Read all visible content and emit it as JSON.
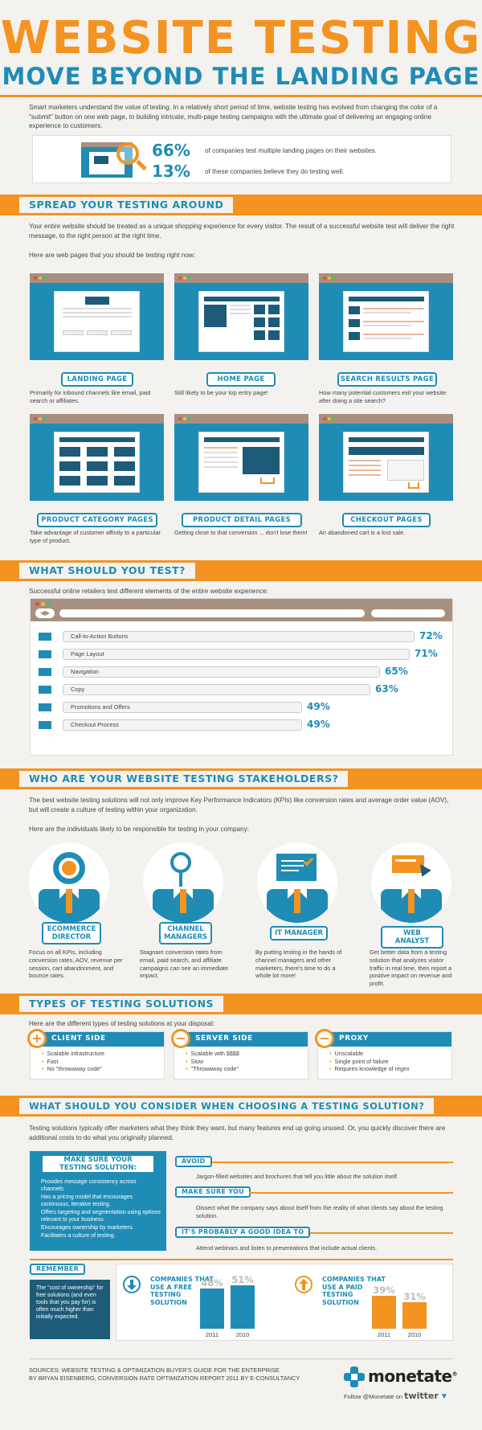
{
  "header": {
    "title": "WEBSITE TESTING",
    "subtitle": "MOVE BEYOND THE LANDING PAGE"
  },
  "intro": {
    "text": "Smart marketers understand the value of testing. In a relatively short period of time, website testing has evolved from changing the color of a \"submit\" button on one web page, to building intricate, multi-page testing campaigns with the ultimate goal of delivering an engaging online experience to customers.",
    "stats": [
      {
        "value": "66%",
        "label": "of companies test multiple landing pages on their websites."
      },
      {
        "value": "13%",
        "label": "of these companies believe they do testing well."
      }
    ]
  },
  "spread": {
    "heading": "SPREAD YOUR TESTING AROUND",
    "text1": "Your entire website should be treated as a unique shopping experience for every visitor. The result of a successful website test will deliver the right message, to the right person at the right time.",
    "text2": "Here are web pages that you should be testing right now:",
    "pages": [
      {
        "label": "LANDING PAGE",
        "caption": "Primarily for inbound channels like email, paid search or affiliates."
      },
      {
        "label": "HOME PAGE",
        "caption": "Still likely to be your top entry page!"
      },
      {
        "label": "SEARCH RESULTS PAGE",
        "caption": "How many potential customers exit your website after doing a site search?"
      },
      {
        "label": "PRODUCT CATEGORY PAGES",
        "caption": "Take advantage of customer affinity to a particular type of product."
      },
      {
        "label": "PRODUCT DETAIL PAGES",
        "caption": "Getting close to that conversion ... don't lose them!"
      },
      {
        "label": "CHECKOUT PAGES",
        "caption": "An abandoned cart is a lost sale."
      }
    ]
  },
  "whattest": {
    "heading": "WHAT SHOULD YOU TEST?",
    "text": "Successful online retailers test different elements of the entire website experience:",
    "items": [
      {
        "label": "Call-to-Action Buttons",
        "value": 72,
        "display": "72%"
      },
      {
        "label": "Page Layout",
        "value": 71,
        "display": "71%"
      },
      {
        "label": "Navigation",
        "value": 65,
        "display": "65%"
      },
      {
        "label": "Copy",
        "value": 63,
        "display": "63%"
      },
      {
        "label": "Promotions and Offers",
        "value": 49,
        "display": "49%"
      },
      {
        "label": "Checkout Process",
        "value": 49,
        "display": "49%"
      }
    ]
  },
  "stakeholders": {
    "heading": "WHO ARE YOUR WEBSITE TESTING STAKEHOLDERS?",
    "text1": "The best website testing solutions will not only improve Key Performance Indicators (KPIs) like conversion rates and average order value (AOV), but will create a culture of testing within your organization.",
    "text2": "Here are the individuals likely to be responsible for testing in your company:",
    "people": [
      {
        "line1": "ECOMMERCE",
        "line2": "DIRECTOR",
        "text": "Focus on all KPIs, including conversion rates, AOV, revenue per session, cart abandonment, and bounce rates."
      },
      {
        "line1": "CHANNEL",
        "line2": "MANAGERS",
        "text": "Stagnant conversion rates from email, paid search, and affiliate campaigns can see an immediate impact."
      },
      {
        "line1": "IT MANAGER",
        "line2": "",
        "text": "By putting testing in the hands of channel managers and other marketers, there's time to do a whole lot more!"
      },
      {
        "line1": "WEB ANALYST",
        "line2": "",
        "text": "Get better data from a testing solution that analyzes visitor traffic in real time, then report a positive impact on revenue and profit."
      }
    ]
  },
  "types": {
    "heading": "TYPES OF TESTING SOLUTIONS",
    "text": "Here are the different types of testing solutions at your disposal:",
    "solutions": [
      {
        "symbol": "+",
        "name": "CLIENT SIDE",
        "points": [
          "Scalable infrastructure",
          "Fast",
          "No \"throwaway code\""
        ]
      },
      {
        "symbol": "−",
        "name": "SERVER SIDE",
        "points": [
          "Scalable with $$$$",
          "Slow",
          "\"Throwaway code\""
        ]
      },
      {
        "symbol": "−",
        "name": "PROXY",
        "points": [
          "Unscalable",
          "Single point of failure",
          "Requires knowledge of regex"
        ]
      }
    ]
  },
  "consider": {
    "heading": "WHAT SHOULD YOU CONSIDER WHEN CHOOSING A TESTING SOLUTION?",
    "text": "Testing solutions typically offer marketers what they think they want, but many features end up going unused. Or, you quickly discover there are additional costs to do what you originally planned.",
    "box_title_1": "MAKE SURE YOUR",
    "box_title_2": "TESTING SOLUTION:",
    "box_points": [
      "Provides message consistency across channels.",
      "Has a pricing model that encourages continuous, iterative testing.",
      "Offers targeting and segmentation using options relevant to your business.",
      "Encourages ownership by marketers.",
      "Facilitates a culture of testing."
    ],
    "tips": [
      {
        "tag": "AVOID",
        "text": "Jargon-filled websites and brochures that tell you little about the solution itself."
      },
      {
        "tag": "MAKE SURE YOU",
        "text": "Dissect what the company says about itself from the reality of what clients say about the testing solution."
      },
      {
        "tag": "IT'S PROBABLY A GOOD IDEA TO",
        "text": "Attend webinars and listen to presentations that include actual clients."
      }
    ],
    "remember_tag": "REMEMBER",
    "remember_text": "The \"cost of ownership\" for free solutions (and even tools that you pay for) is often much higher than initially expected."
  },
  "chart_data": [
    {
      "type": "bar",
      "title": "COMPANIES THAT USE A FREE TESTING SOLUTION",
      "categories": [
        "2011",
        "2010"
      ],
      "values": [
        48,
        51
      ],
      "labels": [
        "48%",
        "51%"
      ],
      "color": "#1f8cb5"
    },
    {
      "type": "bar",
      "title": "COMPANIES THAT USE A PAID TESTING SOLUTION",
      "categories": [
        "2011",
        "2010"
      ],
      "values": [
        39,
        31
      ],
      "labels": [
        "39%",
        "31%"
      ],
      "color": "#f39321"
    }
  ],
  "footer": {
    "sources_1": "SOURCES: WEBSITE TESTING & OPTIMIZATION BUYER'S GUIDE FOR THE ENTERPRISE",
    "sources_2": "BY BRYAN EISENBERG, CONVERSION RATE OPTIMIZATION REPORT 2011 BY E-CONSULTANCY",
    "brand": "monetate",
    "brand_mark": "®",
    "follow_prefix": "Follow @Monetate on",
    "follow_network": "twitter"
  },
  "colors": {
    "orange": "#f39321",
    "blue": "#1f8cb5",
    "navy": "#1d5b79",
    "taupe": "#a88f80"
  }
}
